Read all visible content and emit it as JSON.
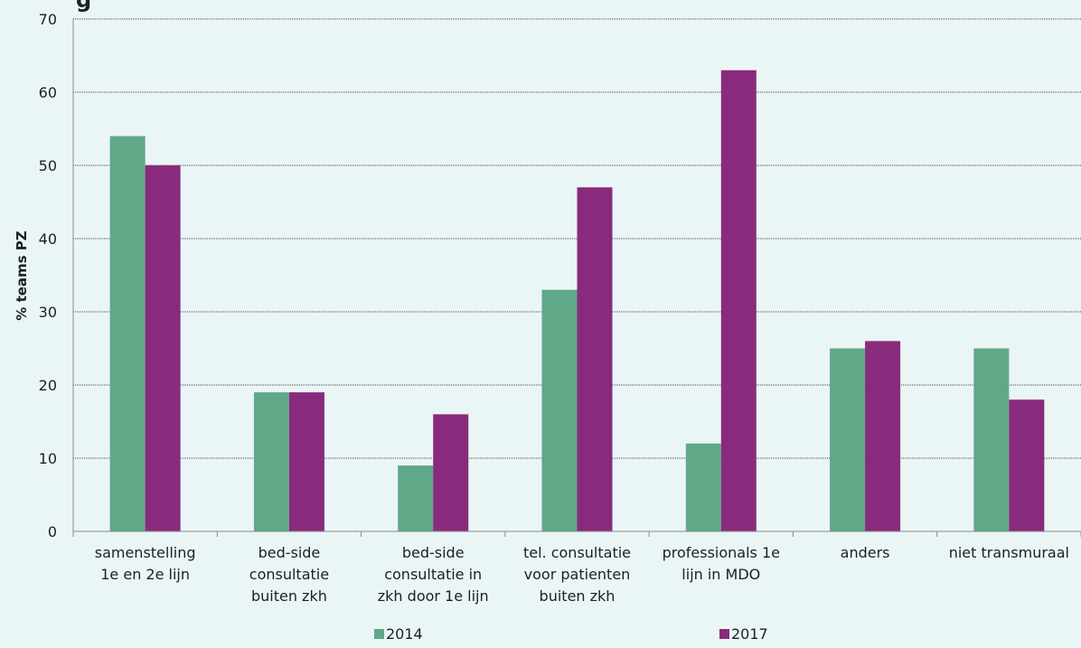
{
  "chart_data": {
    "type": "bar",
    "title_fragment": "g",
    "ylabel": "% teams PZ",
    "ylim": [
      0,
      70
    ],
    "yticks": [
      0,
      10,
      20,
      30,
      40,
      50,
      60,
      70
    ],
    "grid": true,
    "legend_position": "bottom",
    "categories": [
      [
        "samenstelling",
        "1e en 2e lijn"
      ],
      [
        "bed-side",
        "consultatie",
        "buiten zkh"
      ],
      [
        "bed-side",
        "consultatie in",
        "zkh door 1e lijn"
      ],
      [
        "tel. consultatie",
        "voor patienten",
        "buiten zkh"
      ],
      [
        "professionals 1e",
        "lijn in MDO"
      ],
      [
        "anders"
      ],
      [
        "niet transmuraal"
      ]
    ],
    "series": [
      {
        "name": "2014",
        "color": "#5fa888",
        "values": [
          54,
          19,
          9,
          33,
          12,
          25,
          25
        ]
      },
      {
        "name": "2017",
        "color": "#8a2a7c",
        "values": [
          50,
          19,
          16,
          47,
          63,
          26,
          18
        ]
      }
    ]
  }
}
